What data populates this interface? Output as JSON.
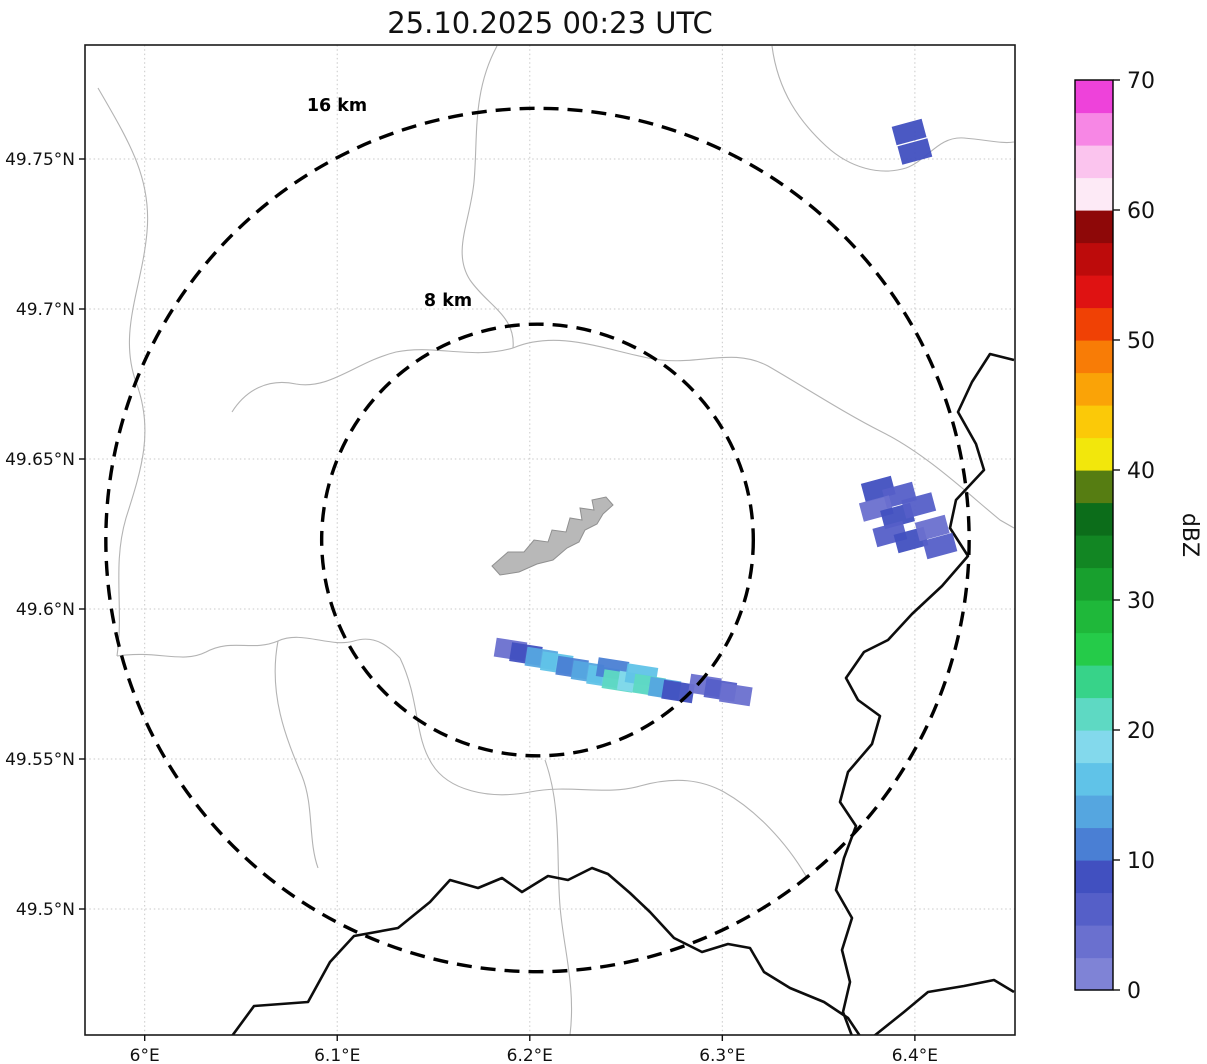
{
  "title": "25.10.2025 00:23 UTC",
  "chart_data": {
    "type": "heatmap",
    "title": "25.10.2025 00:23 UTC",
    "units": "dBZ",
    "xlabel": "",
    "ylabel": "",
    "xlim": [
      5.969,
      6.452
    ],
    "ylim": [
      49.458,
      49.788
    ],
    "grid": true,
    "x_ticks": [
      {
        "value": 6.0,
        "label": "6°E"
      },
      {
        "value": 6.1,
        "label": "6.1°E"
      },
      {
        "value": 6.2,
        "label": "6.2°E"
      },
      {
        "value": 6.3,
        "label": "6.3°E"
      },
      {
        "value": 6.4,
        "label": "6.4°E"
      }
    ],
    "y_ticks": [
      {
        "value": 49.5,
        "label": "49.5°N"
      },
      {
        "value": 49.55,
        "label": "49.55°N"
      },
      {
        "value": 49.6,
        "label": "49.6°N"
      },
      {
        "value": 49.65,
        "label": "49.65°N"
      },
      {
        "value": 49.7,
        "label": "49.7°N"
      },
      {
        "value": 49.75,
        "label": "49.75°N"
      }
    ],
    "colorbar": {
      "label": "dBZ",
      "min": 0,
      "max": 70,
      "step_dbz": 2.5,
      "position": "right",
      "ticks": [
        {
          "value": 0,
          "label": "0"
        },
        {
          "value": 10,
          "label": "10"
        },
        {
          "value": 20,
          "label": "20"
        },
        {
          "value": 30,
          "label": "30"
        },
        {
          "value": 40,
          "label": "40"
        },
        {
          "value": 50,
          "label": "50"
        },
        {
          "value": 60,
          "label": "60"
        },
        {
          "value": 70,
          "label": "70"
        }
      ],
      "colors": [
        "#7f83d6",
        "#6a70cf",
        "#555fc8",
        "#4150c0",
        "#4a7fd4",
        "#55a6e0",
        "#60c3e8",
        "#83d9ec",
        "#5ed9c3",
        "#37d389",
        "#25cb49",
        "#1fb83a",
        "#18a02e",
        "#128623",
        "#0c6d1a",
        "#567d12",
        "#f2e70c",
        "#fbc908",
        "#faa307",
        "#f87c06",
        "#f04105",
        "#df1212",
        "#bd0b0b",
        "#8e0808",
        "#fdeaf6",
        "#fbc4ee",
        "#f787e5",
        "#ee42da"
      ]
    },
    "range_rings": {
      "center_lon": 6.204,
      "center_lat": 49.623,
      "rings": [
        {
          "radius_km": 8,
          "label": "8 km"
        },
        {
          "radius_km": 16,
          "label": "16 km"
        }
      ]
    },
    "echo_cells": [
      {
        "lon": 6.397,
        "lat": 49.759,
        "dbz": 9,
        "rot": -15
      },
      {
        "lon": 6.4,
        "lat": 49.7525,
        "dbz": 8,
        "rot": -15
      },
      {
        "lon": 6.381,
        "lat": 49.64,
        "dbz": 9,
        "rot": -15
      },
      {
        "lon": 6.392,
        "lat": 49.638,
        "dbz": 6,
        "rot": -15
      },
      {
        "lon": 6.38,
        "lat": 49.6335,
        "dbz": 4,
        "rot": -15
      },
      {
        "lon": 6.391,
        "lat": 49.631,
        "dbz": 8,
        "rot": -15
      },
      {
        "lon": 6.402,
        "lat": 49.6345,
        "dbz": 6,
        "rot": -15
      },
      {
        "lon": 6.387,
        "lat": 49.625,
        "dbz": 7,
        "rot": -15
      },
      {
        "lon": 6.398,
        "lat": 49.623,
        "dbz": 9,
        "rot": -15
      },
      {
        "lon": 6.409,
        "lat": 49.627,
        "dbz": 4,
        "rot": -15
      },
      {
        "lon": 6.413,
        "lat": 49.621,
        "dbz": 6,
        "rot": -15
      },
      {
        "lon": 6.19,
        "lat": 49.5865,
        "dbz": 4,
        "rot": 9
      },
      {
        "lon": 6.198,
        "lat": 49.585,
        "dbz": 9,
        "rot": 9
      },
      {
        "lon": 6.206,
        "lat": 49.5835,
        "dbz": 13,
        "rot": 9
      },
      {
        "lon": 6.214,
        "lat": 49.582,
        "dbz": 16,
        "rot": 9
      },
      {
        "lon": 6.222,
        "lat": 49.5805,
        "dbz": 11,
        "rot": 9
      },
      {
        "lon": 6.23,
        "lat": 49.579,
        "dbz": 14,
        "rot": 9
      },
      {
        "lon": 6.238,
        "lat": 49.5775,
        "dbz": 17,
        "rot": 9
      },
      {
        "lon": 6.243,
        "lat": 49.58,
        "dbz": 12,
        "rot": 9
      },
      {
        "lon": 6.246,
        "lat": 49.576,
        "dbz": 21,
        "rot": 9
      },
      {
        "lon": 6.254,
        "lat": 49.5755,
        "dbz": 18,
        "rot": 9
      },
      {
        "lon": 6.258,
        "lat": 49.578,
        "dbz": 16,
        "rot": 9
      },
      {
        "lon": 6.262,
        "lat": 49.5745,
        "dbz": 22,
        "rot": 9
      },
      {
        "lon": 6.27,
        "lat": 49.5735,
        "dbz": 14,
        "rot": 9
      },
      {
        "lon": 6.277,
        "lat": 49.5725,
        "dbz": 9,
        "rot": 9
      },
      {
        "lon": 6.291,
        "lat": 49.5745,
        "dbz": 4,
        "rot": 9
      },
      {
        "lon": 6.299,
        "lat": 49.573,
        "dbz": 6,
        "rot": 9
      },
      {
        "lon": 6.307,
        "lat": 49.5715,
        "dbz": 4,
        "rot": 9
      }
    ]
  }
}
